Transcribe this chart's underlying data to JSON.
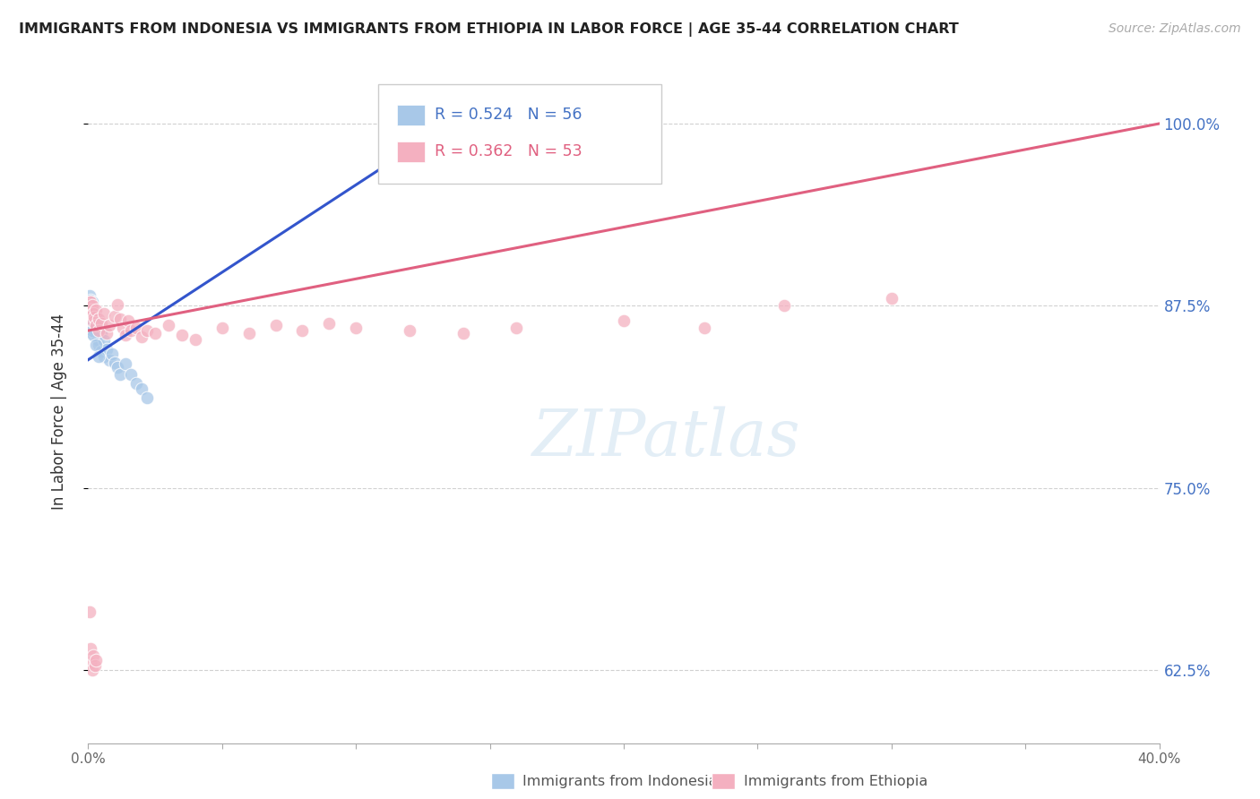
{
  "title": "IMMIGRANTS FROM INDONESIA VS IMMIGRANTS FROM ETHIOPIA IN LABOR FORCE | AGE 35-44 CORRELATION CHART",
  "source": "Source: ZipAtlas.com",
  "ylabel": "In Labor Force | Age 35-44",
  "xlim": [
    0.0,
    0.4
  ],
  "ylim": [
    0.575,
    1.03
  ],
  "yticks": [
    0.625,
    0.75,
    0.875,
    1.0
  ],
  "yticklabels": [
    "62.5%",
    "75.0%",
    "87.5%",
    "100.0%"
  ],
  "indonesia_color": "#a8c8e8",
  "ethiopia_color": "#f4b0c0",
  "indonesia_line_color": "#3355cc",
  "ethiopia_line_color": "#e06080",
  "indo_x": [
    0.0004,
    0.0004,
    0.0006,
    0.0006,
    0.0008,
    0.0008,
    0.001,
    0.001,
    0.001,
    0.001,
    0.0012,
    0.0012,
    0.0014,
    0.0014,
    0.0016,
    0.0016,
    0.0018,
    0.002,
    0.002,
    0.002,
    0.0022,
    0.0024,
    0.0026,
    0.003,
    0.003,
    0.0032,
    0.0034,
    0.004,
    0.004,
    0.005,
    0.005,
    0.006,
    0.006,
    0.007,
    0.008,
    0.009,
    0.01,
    0.011,
    0.012,
    0.014,
    0.016,
    0.018,
    0.02,
    0.022,
    0.0005,
    0.0005,
    0.0007,
    0.0009,
    0.0011,
    0.0015,
    0.002,
    0.003,
    0.004,
    0.12,
    0.127,
    0.133
  ],
  "indo_y": [
    0.878,
    0.872,
    0.882,
    0.876,
    0.879,
    0.87,
    0.878,
    0.873,
    0.868,
    0.862,
    0.871,
    0.866,
    0.878,
    0.862,
    0.869,
    0.856,
    0.865,
    0.872,
    0.858,
    0.871,
    0.866,
    0.862,
    0.857,
    0.867,
    0.855,
    0.863,
    0.852,
    0.86,
    0.848,
    0.856,
    0.844,
    0.851,
    0.84,
    0.845,
    0.838,
    0.842,
    0.836,
    0.833,
    0.828,
    0.835,
    0.828,
    0.822,
    0.818,
    0.812,
    0.876,
    0.866,
    0.87,
    0.864,
    0.868,
    0.858,
    0.855,
    0.848,
    0.84,
    1.0,
    1.0,
    1.0
  ],
  "eth_x": [
    0.0004,
    0.0006,
    0.0008,
    0.001,
    0.001,
    0.0012,
    0.0014,
    0.0016,
    0.002,
    0.002,
    0.0022,
    0.003,
    0.003,
    0.004,
    0.004,
    0.005,
    0.006,
    0.007,
    0.008,
    0.01,
    0.011,
    0.012,
    0.013,
    0.014,
    0.015,
    0.016,
    0.018,
    0.02,
    0.022,
    0.025,
    0.03,
    0.035,
    0.04,
    0.05,
    0.06,
    0.07,
    0.08,
    0.09,
    0.1,
    0.12,
    0.14,
    0.16,
    0.2,
    0.23,
    0.26,
    0.3,
    0.0005,
    0.0008,
    0.001,
    0.0015,
    0.002,
    0.0025,
    0.003
  ],
  "eth_y": [
    0.878,
    0.876,
    0.873,
    0.878,
    0.87,
    0.872,
    0.869,
    0.875,
    0.87,
    0.864,
    0.867,
    0.872,
    0.862,
    0.866,
    0.858,
    0.863,
    0.87,
    0.856,
    0.862,
    0.868,
    0.876,
    0.866,
    0.86,
    0.855,
    0.865,
    0.858,
    0.86,
    0.854,
    0.858,
    0.856,
    0.862,
    0.855,
    0.852,
    0.86,
    0.856,
    0.862,
    0.858,
    0.863,
    0.86,
    0.858,
    0.856,
    0.86,
    0.865,
    0.86,
    0.875,
    0.88,
    0.665,
    0.64,
    0.63,
    0.625,
    0.635,
    0.628,
    0.632
  ],
  "indo_line_x0": 0.0,
  "indo_line_y0": 0.838,
  "indo_line_x1": 0.135,
  "indo_line_y1": 1.0,
  "eth_line_x0": 0.0,
  "eth_line_y0": 0.858,
  "eth_line_x1": 0.4,
  "eth_line_y1": 1.0
}
